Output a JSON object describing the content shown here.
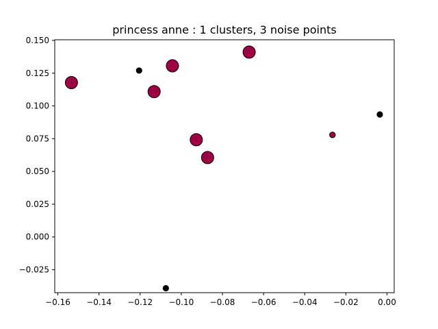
{
  "chart_data": {
    "type": "scatter",
    "title": "princess anne : 1 clusters, 3 noise points",
    "xlabel": "",
    "ylabel": "",
    "xlim": [
      -0.1615,
      0.0035
    ],
    "ylim": [
      -0.0425,
      0.1505
    ],
    "grid": false,
    "x_ticks": [
      -0.16,
      -0.14,
      -0.12,
      -0.1,
      -0.08,
      -0.06,
      -0.04,
      -0.02,
      0.0
    ],
    "x_tick_labels": [
      "−0.16",
      "−0.14",
      "−0.12",
      "−0.10",
      "−0.08",
      "−0.06",
      "−0.04",
      "−0.02",
      "0.00"
    ],
    "y_ticks": [
      -0.025,
      0.0,
      0.025,
      0.05,
      0.075,
      0.1,
      0.125,
      0.15
    ],
    "y_tick_labels": [
      "−0.025",
      "0.000",
      "0.025",
      "0.050",
      "0.075",
      "0.100",
      "0.125",
      "0.150"
    ],
    "series": [
      {
        "color": "#9e0142",
        "marker": "large",
        "points": [
          {
            "x": -0.1534,
            "y": 0.1178
          },
          {
            "x": -0.1132,
            "y": 0.1109
          },
          {
            "x": -0.1043,
            "y": 0.1306
          },
          {
            "x": -0.0927,
            "y": 0.0742
          },
          {
            "x": -0.0872,
            "y": 0.0606
          },
          {
            "x": -0.067,
            "y": 0.1411
          }
        ]
      },
      {
        "color": "#9e0142",
        "marker": "small",
        "points": [
          {
            "x": -0.0265,
            "y": 0.0779
          }
        ]
      },
      {
        "color": "#000000",
        "marker": "small",
        "points": [
          {
            "x": -0.1205,
            "y": 0.127
          },
          {
            "x": -0.1075,
            "y": -0.0391
          },
          {
            "x": -0.0035,
            "y": 0.0935
          }
        ]
      }
    ]
  }
}
